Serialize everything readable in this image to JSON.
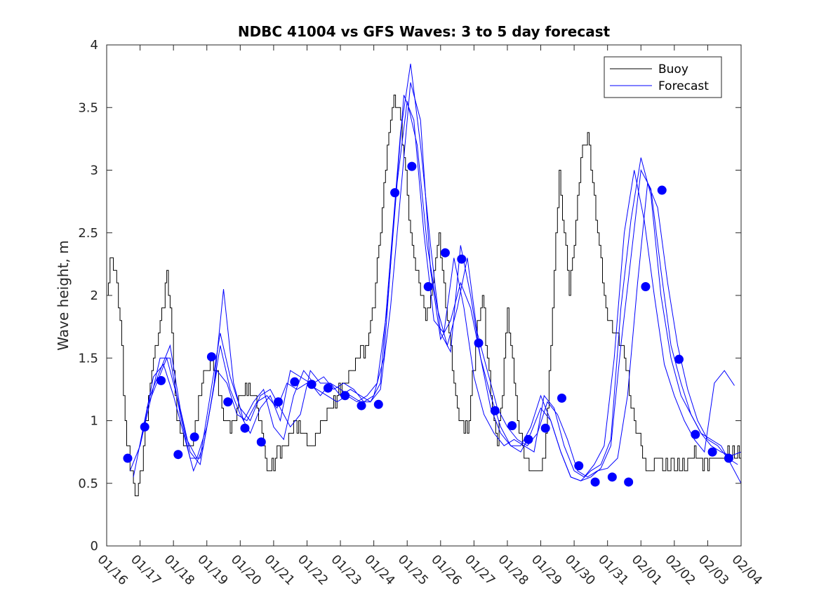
{
  "chart_data": {
    "type": "line",
    "title": "NDBC 41004 vs GFS Waves: 3 to 5 day forecast",
    "xlabel": "",
    "ylabel": "Wave height, m",
    "xlim": [
      0,
      19
    ],
    "ylim": [
      0,
      4
    ],
    "yticks": [
      0,
      0.5,
      1,
      1.5,
      2,
      2.5,
      3,
      3.5,
      4
    ],
    "ytick_labels": [
      "0",
      "0.5",
      "1",
      "1.5",
      "2",
      "2.5",
      "3",
      "3.5",
      "4"
    ],
    "xticks": [
      0,
      1,
      2,
      3,
      4,
      5,
      6,
      7,
      8,
      9,
      10,
      11,
      12,
      13,
      14,
      15,
      16,
      17,
      18,
      19
    ],
    "xtick_labels": [
      "01/16",
      "01/17",
      "01/18",
      "01/19",
      "01/20",
      "01/21",
      "01/22",
      "01/23",
      "01/24",
      "01/25",
      "01/26",
      "01/27",
      "01/28",
      "01/29",
      "01/30",
      "01/31",
      "02/01",
      "02/02",
      "02/03",
      "02/04"
    ],
    "legend": {
      "position": "top-right",
      "entries": [
        "Buoy",
        "Forecast"
      ]
    },
    "colors": {
      "buoy": "#000000",
      "forecast": "#0000ff",
      "axes": "#262626"
    },
    "buoy": {
      "name": "Buoy",
      "step": 0.1,
      "x": [
        0,
        0.1,
        0.25,
        0.4,
        0.5,
        0.6,
        0.8,
        0.9,
        1.05,
        1.2,
        1.4,
        1.6,
        1.8,
        1.9,
        2.0,
        2.1,
        2.3,
        2.5,
        2.7,
        2.9,
        3.1,
        3.3,
        3.5,
        3.7,
        3.9,
        4.0,
        4.2,
        4.4,
        4.6,
        4.8,
        5.0,
        5.1,
        5.3,
        5.5,
        5.7,
        5.9,
        6.1,
        6.3,
        6.6,
        6.9,
        7.2,
        7.5,
        7.8,
        8.0,
        8.2,
        8.4,
        8.6,
        8.75,
        8.9,
        9.0,
        9.1,
        9.25,
        9.4,
        9.55,
        9.65,
        9.8,
        9.95,
        10.1,
        10.3,
        10.45,
        10.6,
        10.8,
        10.95,
        11.1,
        11.25,
        11.4,
        11.55,
        11.7,
        11.85,
        12.0,
        12.15,
        12.3,
        12.45,
        12.6,
        12.8,
        12.95,
        13.1,
        13.25,
        13.4,
        13.55,
        13.7,
        13.85,
        14.0,
        14.2,
        14.4,
        14.6,
        14.8,
        14.95,
        15.1,
        15.25,
        15.4,
        15.55,
        15.7,
        15.85,
        16.0,
        16.1,
        16.25,
        16.4,
        16.5,
        16.6,
        16.75,
        16.9,
        17.05,
        17.2,
        17.35,
        17.5,
        17.65,
        17.8,
        17.95,
        18.1,
        18.25,
        18.4,
        18.55,
        18.7,
        18.85,
        19.0
      ],
      "y": [
        2.0,
        2.3,
        2.2,
        1.8,
        1.2,
        0.8,
        0.5,
        0.4,
        0.7,
        1.1,
        1.5,
        1.8,
        2.1,
        1.9,
        1.4,
        1.0,
        0.8,
        0.8,
        1.1,
        1.4,
        1.5,
        1.3,
        1.0,
        0.9,
        1.1,
        1.2,
        1.3,
        1.2,
        1.0,
        0.6,
        0.6,
        0.7,
        0.8,
        0.9,
        1.0,
        0.9,
        0.8,
        0.9,
        1.0,
        1.2,
        1.4,
        1.5,
        1.6,
        1.9,
        2.5,
        3.2,
        3.6,
        3.5,
        3.1,
        2.8,
        2.5,
        2.2,
        2.0,
        1.8,
        1.9,
        2.2,
        2.5,
        2.1,
        1.6,
        1.2,
        1.0,
        0.9,
        1.3,
        1.7,
        2.0,
        1.5,
        1.1,
        0.9,
        1.3,
        1.9,
        1.5,
        1.0,
        0.8,
        0.6,
        0.6,
        0.6,
        0.7,
        1.4,
        2.2,
        3.0,
        2.5,
        2.0,
        2.4,
        3.1,
        3.3,
        2.8,
        2.3,
        1.9,
        1.8,
        1.7,
        1.6,
        1.4,
        1.1,
        0.9,
        0.8,
        0.7,
        0.6,
        0.7,
        0.8,
        0.7,
        0.65,
        0.65,
        0.6,
        0.6,
        0.62,
        0.7,
        0.75,
        0.7,
        0.68,
        0.7,
        0.72,
        0.7,
        0.71,
        0.72,
        0.71,
        0.7
      ]
    },
    "forecast_lines": [
      {
        "name": "Forecast",
        "x": [
          1.2,
          1.5,
          1.8,
          2.1,
          2.4,
          2.7,
          3.0,
          3.3,
          3.6,
          3.9,
          4.2,
          4.5,
          4.8,
          5.1,
          5.4,
          5.7,
          6.0,
          6.3,
          6.6,
          6.9,
          7.2,
          7.5,
          7.8,
          8.1,
          8.4,
          8.7,
          9.0,
          9.3,
          9.6,
          9.9,
          10.2,
          10.5,
          10.8,
          11.1,
          11.4,
          11.7,
          12.0,
          12.3,
          12.6,
          12.9,
          13.2,
          13.5,
          13.8,
          14.1,
          14.4,
          14.7,
          15.0,
          15.3,
          15.6,
          15.9,
          16.2,
          16.5,
          16.8,
          17.1,
          17.4,
          17.7,
          18.0,
          18.3,
          18.6,
          18.9
        ],
        "y": [
          1.1,
          1.3,
          1.5,
          1.2,
          0.85,
          0.7,
          0.95,
          1.4,
          1.3,
          1.05,
          1.0,
          1.15,
          1.2,
          1.1,
          1.3,
          1.25,
          1.3,
          1.25,
          1.2,
          1.15,
          1.2,
          1.15,
          1.2,
          1.3,
          1.9,
          2.9,
          3.55,
          3.2,
          2.4,
          1.9,
          1.6,
          1.9,
          2.3,
          1.7,
          1.4,
          1.1,
          0.95,
          0.85,
          0.8,
          0.9,
          1.15,
          1.05,
          0.85,
          0.6,
          0.55,
          0.6,
          0.62,
          0.7,
          1.2,
          2.1,
          2.9,
          2.7,
          2.1,
          1.6,
          1.25,
          1.0,
          0.85,
          0.8,
          0.7,
          0.65
        ]
      },
      {
        "name": "Forecast",
        "x": [
          0.7,
          1.0,
          1.3,
          1.6,
          1.9,
          2.2,
          2.5,
          2.8,
          3.1,
          3.4,
          3.7,
          4.0,
          4.3,
          4.6,
          4.9,
          5.2,
          5.5,
          5.8,
          6.1,
          6.4,
          6.7,
          7.0,
          7.3,
          7.6,
          7.9,
          8.2,
          8.5,
          8.8,
          9.1,
          9.4,
          9.7,
          10.0,
          10.3,
          10.6,
          10.9,
          11.2,
          11.5,
          11.8,
          12.1,
          12.4,
          12.7,
          13.0,
          13.3,
          13.6,
          13.9,
          14.2,
          14.5,
          14.8,
          15.1,
          15.4,
          15.7,
          16.0,
          16.3,
          16.6,
          16.9,
          17.2,
          17.5,
          17.8,
          18.1,
          18.4,
          18.7,
          19.0
        ],
        "y": [
          0.6,
          0.8,
          1.2,
          1.4,
          1.6,
          1.1,
          0.75,
          0.65,
          1.1,
          1.6,
          1.25,
          1.05,
          0.9,
          1.1,
          1.2,
          1.0,
          1.4,
          1.35,
          1.3,
          1.2,
          1.3,
          1.25,
          1.2,
          1.15,
          1.15,
          1.3,
          2.3,
          3.3,
          3.85,
          3.2,
          2.4,
          1.7,
          1.55,
          2.4,
          2.0,
          1.5,
          1.2,
          0.95,
          0.8,
          0.75,
          0.9,
          1.1,
          1.0,
          0.75,
          0.55,
          0.52,
          0.6,
          0.65,
          0.85,
          1.9,
          2.6,
          3.1,
          2.8,
          2.0,
          1.5,
          1.2,
          1.05,
          0.9,
          0.85,
          0.8,
          0.65,
          0.5
        ]
      },
      {
        "name": "Forecast",
        "x": [
          0.8,
          1.1,
          1.4,
          1.7,
          2.0,
          2.3,
          2.6,
          2.9,
          3.2,
          3.5,
          3.8,
          4.1,
          4.4,
          4.7,
          5.0,
          5.3,
          5.6,
          5.9,
          6.2,
          6.5,
          6.8,
          7.1,
          7.4,
          7.7,
          8.0,
          8.3,
          8.6,
          8.9,
          9.2,
          9.5,
          9.8,
          10.1,
          10.4,
          10.7,
          11.0,
          11.3,
          11.6,
          11.9,
          12.2,
          12.5,
          12.8,
          13.1,
          13.4,
          13.7,
          14.0,
          14.3,
          14.6,
          14.9,
          15.2,
          15.5,
          15.8,
          16.1,
          16.4,
          16.7,
          17.0,
          17.3,
          17.6,
          17.9,
          18.2,
          18.5,
          18.8
        ],
        "y": [
          0.55,
          0.95,
          1.35,
          1.45,
          1.2,
          0.9,
          0.6,
          0.8,
          1.25,
          2.05,
          1.3,
          1.0,
          1.15,
          1.25,
          0.95,
          0.85,
          1.2,
          1.4,
          1.3,
          1.35,
          1.25,
          1.3,
          1.25,
          1.15,
          1.2,
          1.5,
          2.6,
          3.6,
          3.4,
          2.5,
          1.8,
          1.7,
          2.3,
          1.9,
          1.35,
          1.05,
          0.9,
          0.8,
          0.85,
          0.8,
          0.75,
          1.2,
          1.1,
          0.8,
          0.6,
          0.55,
          0.65,
          0.8,
          1.5,
          2.5,
          3.0,
          2.6,
          2.0,
          1.45,
          1.2,
          1.0,
          0.85,
          0.75,
          1.3,
          1.4,
          1.28
        ]
      },
      {
        "name": "Forecast",
        "x": [
          1.0,
          1.3,
          1.6,
          1.9,
          2.2,
          2.5,
          2.8,
          3.1,
          3.4,
          3.7,
          4.0,
          4.3,
          4.6,
          4.9,
          5.2,
          5.5,
          5.8,
          6.1,
          6.4,
          6.7,
          7.0,
          7.3,
          7.6,
          7.9,
          8.2,
          8.5,
          8.8,
          9.1,
          9.4,
          9.7,
          10.0,
          10.3,
          10.6,
          10.9,
          11.2,
          11.5,
          11.8,
          12.1,
          12.4,
          12.7,
          13.0,
          13.3,
          13.6,
          13.9,
          14.2,
          14.5,
          14.8,
          15.1,
          15.4,
          15.7,
          16.0,
          16.3,
          16.6,
          16.9,
          17.2,
          17.5,
          17.8,
          18.1,
          18.4,
          18.7,
          19.0
        ],
        "y": [
          0.8,
          1.15,
          1.5,
          1.5,
          1.05,
          0.7,
          0.7,
          1.2,
          1.7,
          1.35,
          1.1,
          1.0,
          1.2,
          1.25,
          1.1,
          0.95,
          1.05,
          1.4,
          1.3,
          1.3,
          1.2,
          1.25,
          1.2,
          1.15,
          1.25,
          1.9,
          2.8,
          3.7,
          3.4,
          2.2,
          1.65,
          1.8,
          2.1,
          1.9,
          1.5,
          1.1,
          0.9,
          0.8,
          0.8,
          0.95,
          1.2,
          1.0,
          0.75,
          0.55,
          0.52,
          0.55,
          0.62,
          0.8,
          1.6,
          2.3,
          3.0,
          2.85,
          2.2,
          1.6,
          1.3,
          1.05,
          0.9,
          0.8,
          0.75,
          0.72,
          0.75
        ]
      }
    ],
    "forecast_points": {
      "name": "Forecast",
      "x": [
        0.63,
        1.14,
        1.63,
        2.14,
        2.63,
        3.14,
        3.63,
        4.14,
        4.63,
        5.14,
        5.63,
        6.14,
        6.63,
        7.14,
        7.63,
        8.14,
        8.63,
        9.14,
        9.63,
        10.14,
        10.63,
        11.14,
        11.63,
        12.14,
        12.63,
        13.14,
        13.63,
        14.14,
        14.63,
        15.14,
        15.63,
        16.14,
        16.63,
        17.14,
        17.63,
        18.14,
        18.63
      ],
      "y": [
        0.7,
        0.95,
        1.32,
        0.73,
        0.87,
        1.51,
        1.15,
        0.94,
        0.83,
        1.15,
        1.31,
        1.29,
        1.26,
        1.2,
        1.12,
        1.13,
        2.82,
        3.03,
        2.07,
        2.34,
        2.29,
        1.62,
        1.08,
        0.96,
        0.85,
        0.94,
        1.18,
        0.64,
        0.51,
        0.55,
        0.51,
        2.07,
        2.84,
        1.49,
        0.89,
        0.75,
        0.7
      ]
    }
  }
}
